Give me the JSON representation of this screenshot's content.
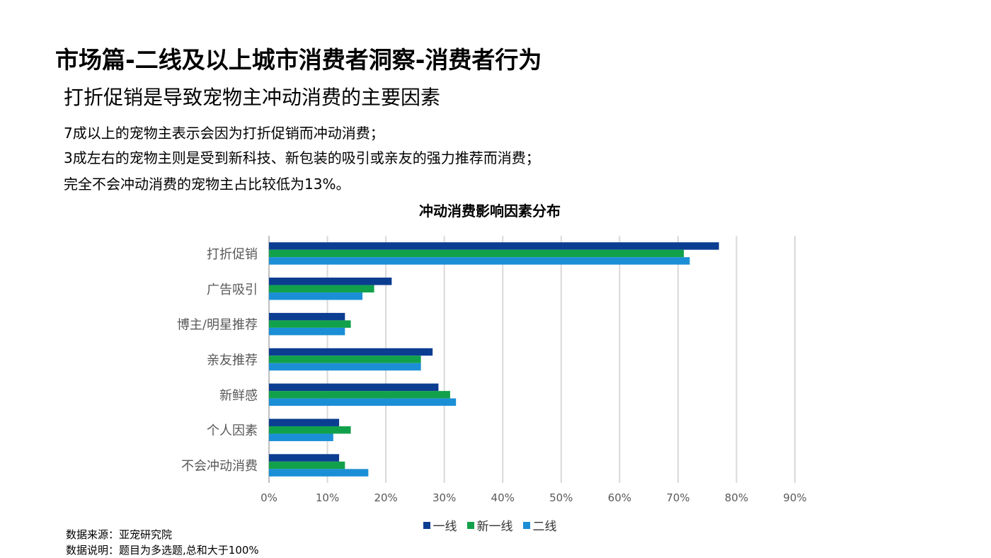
{
  "header": {
    "title": "市场篇-二线及以上城市消费者洞察-消费者行为",
    "subtitle": "打折促销是导致宠物主冲动消费的主要因素"
  },
  "bullets": [
    "7成以上的宠物主表示会因为打折促销而冲动消费；",
    "3成左右的宠物主则是受到新科技、新包装的吸引或亲友的强力推荐而消费；",
    "完全不会冲动消费的宠物主占比较低为13%。"
  ],
  "footer": {
    "source": "数据来源：亚宠研究院",
    "note": "数据说明：题目为多选题,总和大于100%"
  },
  "chart_data": {
    "type": "bar",
    "orientation": "horizontal",
    "title": "冲动消费影响因素分布",
    "xlabel": "",
    "ylabel": "",
    "categories": [
      "打折促销",
      "广告吸引",
      "博主/明星推荐",
      "亲友推荐",
      "新鲜感",
      "个人因素",
      "不会冲动消费"
    ],
    "series": [
      {
        "name": "一线",
        "color": "#0b3d91",
        "values": [
          77,
          21,
          13,
          28,
          29,
          12,
          12
        ]
      },
      {
        "name": "新一线",
        "color": "#12a14b",
        "values": [
          71,
          18,
          14,
          26,
          31,
          14,
          13
        ]
      },
      {
        "name": "二线",
        "color": "#1b8fd6",
        "values": [
          72,
          16,
          13,
          26,
          32,
          11,
          17
        ]
      }
    ],
    "xlim": [
      0,
      90
    ],
    "xticks": [
      0,
      10,
      20,
      30,
      40,
      50,
      60,
      70,
      80,
      90
    ],
    "tick_suffix": "%",
    "grid": true,
    "legend": "bottom-center"
  }
}
